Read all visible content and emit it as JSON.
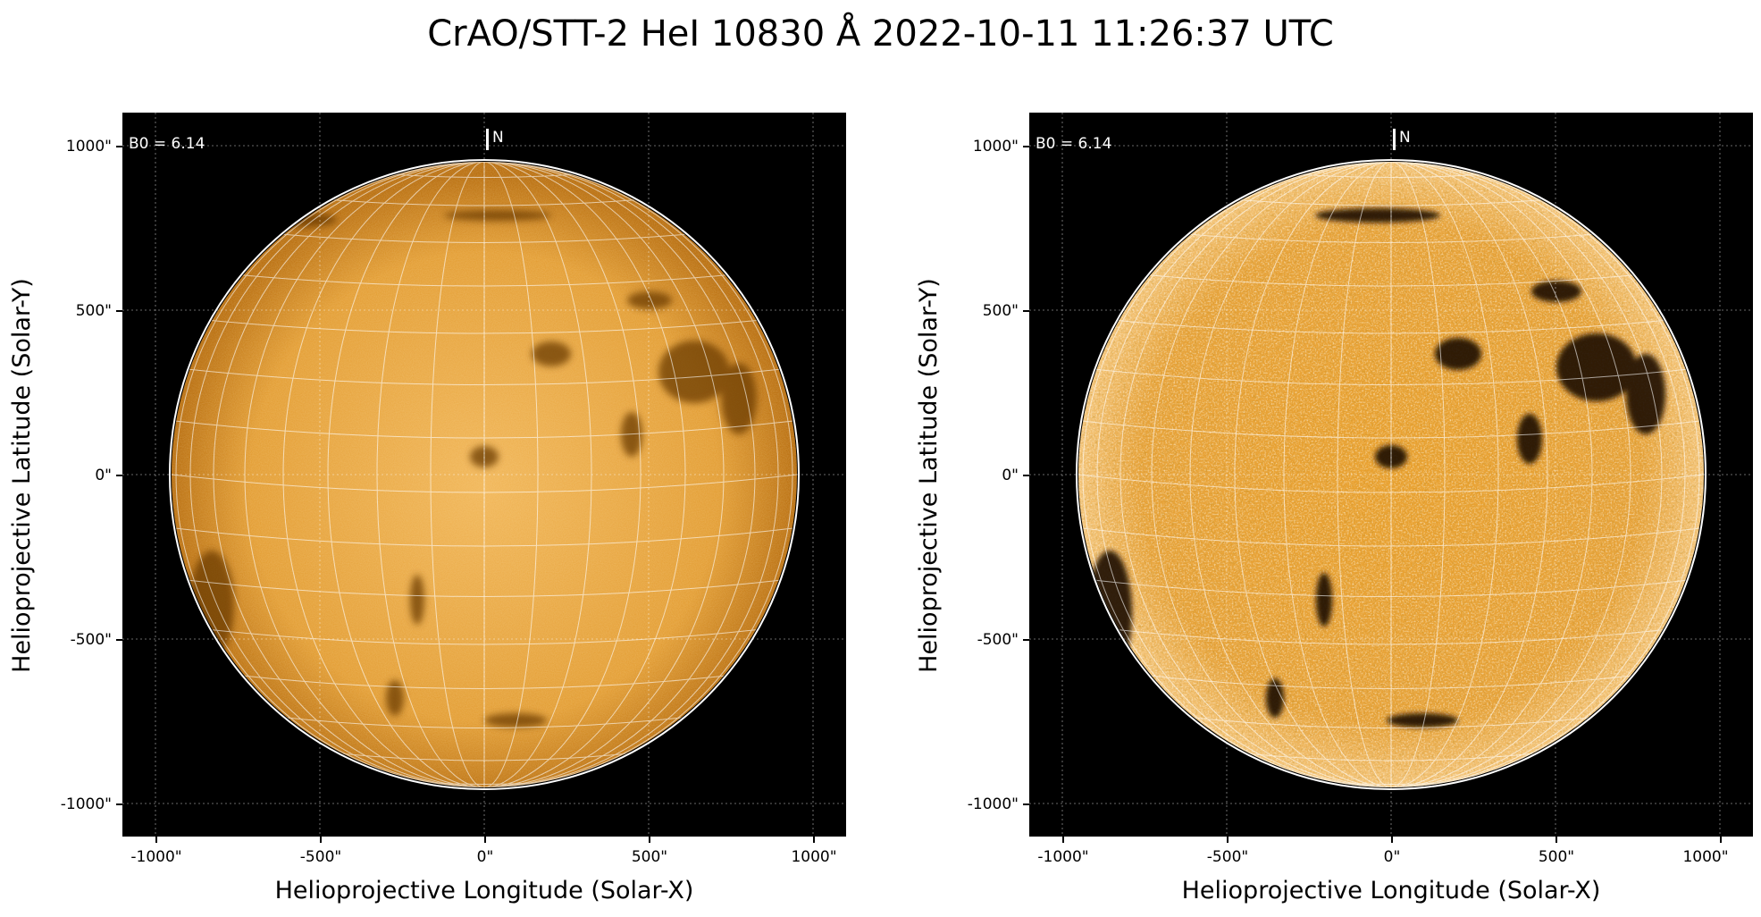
{
  "title": "CrAO/STT-2 HeI 10830 Å 2022-10-11 11:26:37 UTC",
  "colors": {
    "disk_light": "#f3b75a",
    "disk_mid": "#d98a16",
    "disk_dark": "#8a4a05",
    "sky": "#000000",
    "grid": "#ffffff"
  },
  "panels": [
    {
      "id": "left",
      "b0_label": "B0 = 6.14",
      "north_label": "N",
      "x_axis_label": "Helioprojective Longitude (Solar-X)",
      "y_axis_label": "Helioprojective Latitude (Solar-Y)",
      "x_ticks": [
        "-1000\"",
        "-500\"",
        "0\"",
        "500\"",
        "1000\""
      ],
      "y_ticks": [
        "1000\"",
        "500\"",
        "0\"",
        "-500\"",
        "-1000\""
      ],
      "contrast": "normal"
    },
    {
      "id": "right",
      "b0_label": "B0 = 6.14",
      "north_label": "N",
      "x_axis_label": "Helioprojective Longitude (Solar-X)",
      "y_axis_label": "Helioprojective Latitude (Solar-Y)",
      "x_ticks": [
        "-1000\"",
        "-500\"",
        "0\"",
        "500\"",
        "1000\""
      ],
      "y_ticks": [
        "1000\"",
        "500\"",
        "0\"",
        "-500\"",
        "-1000\""
      ],
      "contrast": "enhanced"
    }
  ]
}
